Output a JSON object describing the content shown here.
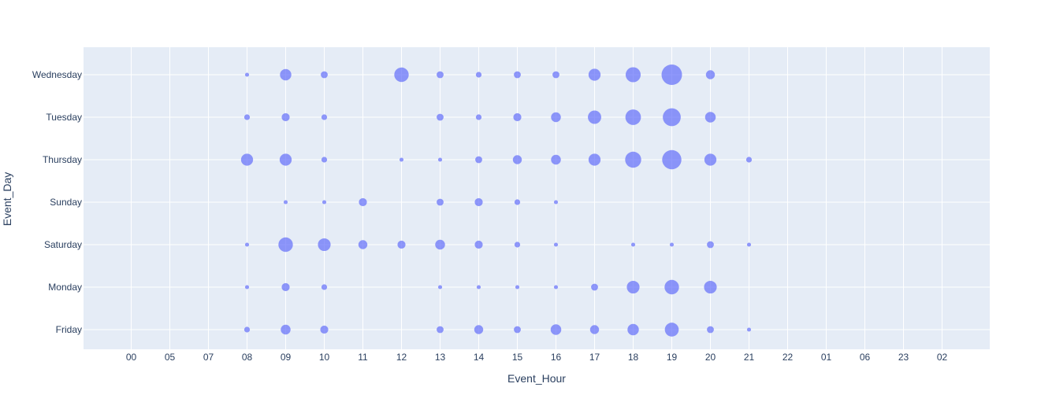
{
  "chart_data": {
    "type": "scatter",
    "xlabel": "Event_Hour",
    "ylabel": "Event_Day",
    "x_categories": [
      "00",
      "05",
      "07",
      "08",
      "09",
      "10",
      "11",
      "12",
      "13",
      "14",
      "15",
      "16",
      "17",
      "18",
      "19",
      "20",
      "21",
      "22",
      "01",
      "06",
      "23",
      "02"
    ],
    "y_categories": [
      "Friday",
      "Monday",
      "Saturday",
      "Sunday",
      "Thursday",
      "Tuesday",
      "Wednesday"
    ],
    "grid": true,
    "colors": {
      "marker": "#636efa",
      "plot_bg": "#e5ecf6",
      "grid": "#ffffff",
      "text": "#2a3f5f"
    },
    "points": [
      {
        "day": "Wednesday",
        "hour": "08",
        "size": 1
      },
      {
        "day": "Wednesday",
        "hour": "09",
        "size": 8
      },
      {
        "day": "Wednesday",
        "hour": "10",
        "size": 3
      },
      {
        "day": "Wednesday",
        "hour": "12",
        "size": 13
      },
      {
        "day": "Wednesday",
        "hour": "13",
        "size": 3
      },
      {
        "day": "Wednesday",
        "hour": "14",
        "size": 2
      },
      {
        "day": "Wednesday",
        "hour": "15",
        "size": 3
      },
      {
        "day": "Wednesday",
        "hour": "16",
        "size": 3
      },
      {
        "day": "Wednesday",
        "hour": "17",
        "size": 9
      },
      {
        "day": "Wednesday",
        "hour": "18",
        "size": 14
      },
      {
        "day": "Wednesday",
        "hour": "19",
        "size": 26
      },
      {
        "day": "Wednesday",
        "hour": "20",
        "size": 5
      },
      {
        "day": "Tuesday",
        "hour": "08",
        "size": 2
      },
      {
        "day": "Tuesday",
        "hour": "09",
        "size": 4
      },
      {
        "day": "Tuesday",
        "hour": "10",
        "size": 2
      },
      {
        "day": "Tuesday",
        "hour": "13",
        "size": 3
      },
      {
        "day": "Tuesday",
        "hour": "14",
        "size": 2
      },
      {
        "day": "Tuesday",
        "hour": "15",
        "size": 4
      },
      {
        "day": "Tuesday",
        "hour": "16",
        "size": 6
      },
      {
        "day": "Tuesday",
        "hour": "17",
        "size": 11
      },
      {
        "day": "Tuesday",
        "hour": "18",
        "size": 15
      },
      {
        "day": "Tuesday",
        "hour": "19",
        "size": 20
      },
      {
        "day": "Tuesday",
        "hour": "20",
        "size": 7
      },
      {
        "day": "Thursday",
        "hour": "08",
        "size": 9
      },
      {
        "day": "Thursday",
        "hour": "09",
        "size": 9
      },
      {
        "day": "Thursday",
        "hour": "10",
        "size": 2
      },
      {
        "day": "Thursday",
        "hour": "12",
        "size": 1
      },
      {
        "day": "Thursday",
        "hour": "13",
        "size": 1
      },
      {
        "day": "Thursday",
        "hour": "14",
        "size": 3
      },
      {
        "day": "Thursday",
        "hour": "15",
        "size": 5
      },
      {
        "day": "Thursday",
        "hour": "16",
        "size": 6
      },
      {
        "day": "Thursday",
        "hour": "17",
        "size": 9
      },
      {
        "day": "Thursday",
        "hour": "18",
        "size": 16
      },
      {
        "day": "Thursday",
        "hour": "19",
        "size": 23
      },
      {
        "day": "Thursday",
        "hour": "20",
        "size": 9
      },
      {
        "day": "Thursday",
        "hour": "21",
        "size": 2
      },
      {
        "day": "Sunday",
        "hour": "09",
        "size": 1
      },
      {
        "day": "Sunday",
        "hour": "10",
        "size": 1
      },
      {
        "day": "Sunday",
        "hour": "11",
        "size": 4
      },
      {
        "day": "Sunday",
        "hour": "13",
        "size": 3
      },
      {
        "day": "Sunday",
        "hour": "14",
        "size": 4
      },
      {
        "day": "Sunday",
        "hour": "15",
        "size": 2
      },
      {
        "day": "Sunday",
        "hour": "16",
        "size": 1
      },
      {
        "day": "Saturday",
        "hour": "08",
        "size": 1
      },
      {
        "day": "Saturday",
        "hour": "09",
        "size": 13
      },
      {
        "day": "Saturday",
        "hour": "10",
        "size": 10
      },
      {
        "day": "Saturday",
        "hour": "11",
        "size": 5
      },
      {
        "day": "Saturday",
        "hour": "12",
        "size": 4
      },
      {
        "day": "Saturday",
        "hour": "13",
        "size": 6
      },
      {
        "day": "Saturday",
        "hour": "14",
        "size": 4
      },
      {
        "day": "Saturday",
        "hour": "15",
        "size": 2
      },
      {
        "day": "Saturday",
        "hour": "16",
        "size": 1
      },
      {
        "day": "Saturday",
        "hour": "18",
        "size": 1
      },
      {
        "day": "Saturday",
        "hour": "19",
        "size": 1
      },
      {
        "day": "Saturday",
        "hour": "20",
        "size": 3
      },
      {
        "day": "Saturday",
        "hour": "21",
        "size": 1
      },
      {
        "day": "Monday",
        "hour": "08",
        "size": 1
      },
      {
        "day": "Monday",
        "hour": "09",
        "size": 4
      },
      {
        "day": "Monday",
        "hour": "10",
        "size": 2
      },
      {
        "day": "Monday",
        "hour": "13",
        "size": 1
      },
      {
        "day": "Monday",
        "hour": "14",
        "size": 1
      },
      {
        "day": "Monday",
        "hour": "15",
        "size": 1
      },
      {
        "day": "Monday",
        "hour": "16",
        "size": 1
      },
      {
        "day": "Monday",
        "hour": "17",
        "size": 3
      },
      {
        "day": "Monday",
        "hour": "18",
        "size": 10
      },
      {
        "day": "Monday",
        "hour": "19",
        "size": 13
      },
      {
        "day": "Monday",
        "hour": "20",
        "size": 10
      },
      {
        "day": "Friday",
        "hour": "08",
        "size": 2
      },
      {
        "day": "Friday",
        "hour": "09",
        "size": 6
      },
      {
        "day": "Friday",
        "hour": "10",
        "size": 4
      },
      {
        "day": "Friday",
        "hour": "13",
        "size": 3
      },
      {
        "day": "Friday",
        "hour": "14",
        "size": 5
      },
      {
        "day": "Friday",
        "hour": "15",
        "size": 3
      },
      {
        "day": "Friday",
        "hour": "16",
        "size": 7
      },
      {
        "day": "Friday",
        "hour": "17",
        "size": 5
      },
      {
        "day": "Friday",
        "hour": "18",
        "size": 8
      },
      {
        "day": "Friday",
        "hour": "19",
        "size": 12
      },
      {
        "day": "Friday",
        "hour": "20",
        "size": 3
      },
      {
        "day": "Friday",
        "hour": "21",
        "size": 1
      }
    ]
  }
}
